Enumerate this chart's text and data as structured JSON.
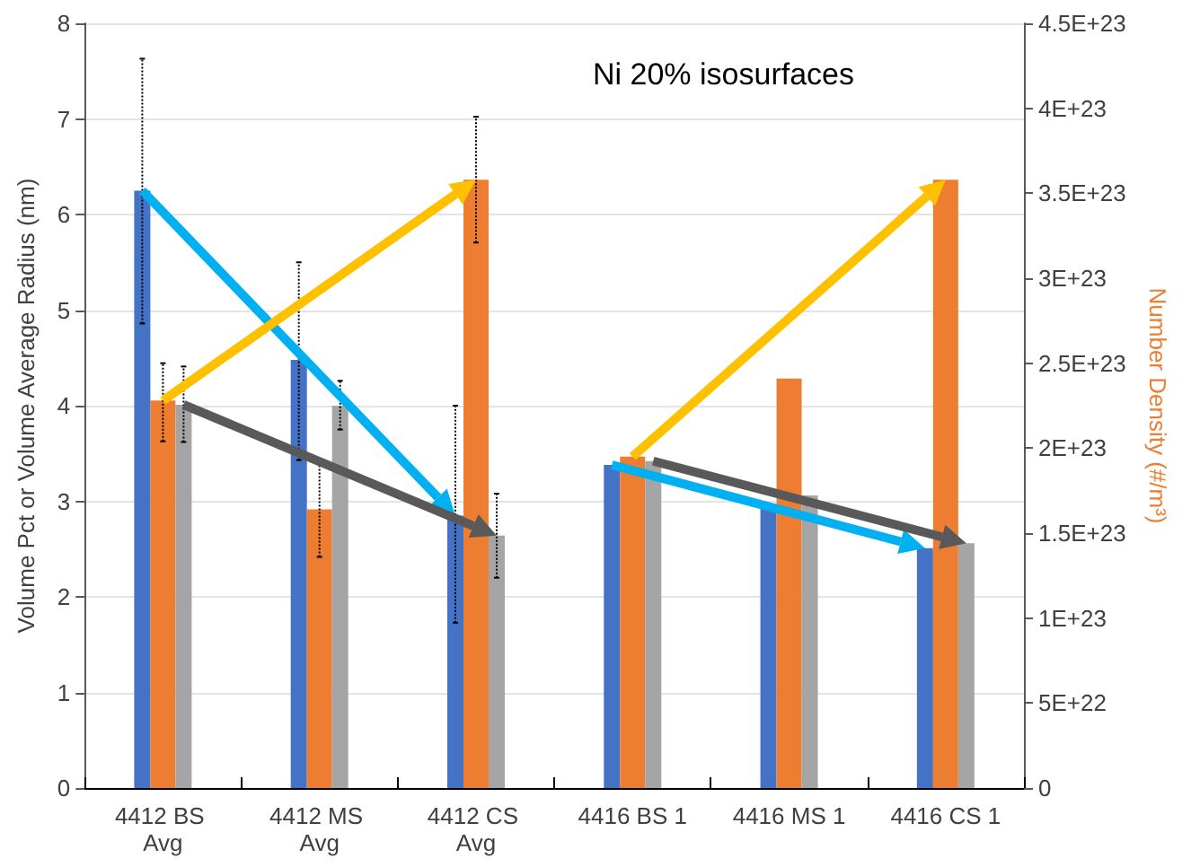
{
  "chart_data": {
    "type": "bar",
    "title": "Ni 20% isosurfaces",
    "ylabel": "Volume Pct or Volume Average Radius (nm)",
    "y2label": "Number Density (#/m³)",
    "categories": [
      "4412 BS Avg",
      "4412 MS Avg",
      "4412 CS Avg",
      "4416 BS 1",
      "4416 MS 1",
      "4416 CS 1"
    ],
    "series": [
      {
        "color": "#4472c4",
        "values": [
          6.25,
          4.48,
          2.85,
          3.38,
          2.93,
          2.51
        ],
        "errors": [
          [
            4.86,
            7.63
          ],
          [
            3.43,
            5.5
          ],
          [
            1.73,
            4.0
          ],
          null,
          null,
          null
        ]
      },
      {
        "color": "#ed7d31",
        "axis": "y2",
        "values": [
          2.28e+23,
          1.64e+23,
          3.58e+23,
          1.95e+23,
          2.41e+23,
          3.58e+23
        ],
        "errors": [
          [
            2.04e+23,
            2.5e+23
          ],
          [
            1.36e+23,
            1.92e+23
          ],
          [
            3.21e+23,
            3.95e+23
          ],
          null,
          null,
          null
        ]
      },
      {
        "color": "#a5a5a5",
        "values": [
          4.01,
          4.0,
          2.64,
          3.42,
          3.06,
          2.56
        ],
        "errors": [
          [
            3.62,
            4.41
          ],
          [
            3.75,
            4.26
          ],
          [
            2.2,
            3.08
          ],
          null,
          null,
          null
        ]
      }
    ],
    "ylim": [
      0,
      8
    ],
    "yticks": [
      0,
      1,
      2,
      3,
      4,
      5,
      6,
      7,
      8
    ],
    "y2lim": [
      0,
      4.5e+23
    ],
    "y2ticks": [
      {
        "value": 0,
        "label": "0"
      },
      {
        "value": 5e+22,
        "label": "5E+22"
      },
      {
        "value": 1e+23,
        "label": "1E+23"
      },
      {
        "value": 1.5e+23,
        "label": "1.5E+23"
      },
      {
        "value": 2e+23,
        "label": "2E+23"
      },
      {
        "value": 2.5e+23,
        "label": "2.5E+23"
      },
      {
        "value": 3e+23,
        "label": "3E+23"
      },
      {
        "value": 3.5e+23,
        "label": "3.5E+23"
      },
      {
        "value": 4e+23,
        "label": "4E+23"
      },
      {
        "value": 4.5e+23,
        "label": "4.5E+23"
      }
    ],
    "grid": "y"
  }
}
